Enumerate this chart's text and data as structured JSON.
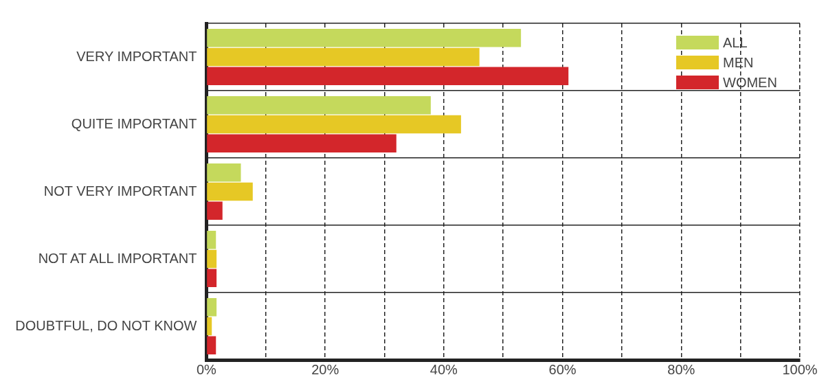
{
  "chart_data": {
    "type": "bar",
    "orientation": "horizontal",
    "categories": [
      "VERY IMPORTANT",
      "QUITE IMPORTANT",
      "NOT VERY IMPORTANT",
      "NOT AT ALL IMPORTANT",
      "DOUBTFUL, DO NOT KNOW"
    ],
    "series": [
      {
        "name": "ALL",
        "color": "#c5d95c",
        "values": [
          53,
          37.8,
          5.8,
          1.6,
          1.7
        ]
      },
      {
        "name": "MEN",
        "color": "#e6c825",
        "values": [
          46,
          42.9,
          7.8,
          1.7,
          0.9
        ]
      },
      {
        "name": "WOMEN",
        "color": "#d3262b",
        "values": [
          61,
          32,
          2.7,
          1.7,
          1.6
        ]
      }
    ],
    "xlim": [
      0,
      100
    ],
    "xticks": [
      {
        "value": 0,
        "label": "0%"
      },
      {
        "value": 10,
        "label": null
      },
      {
        "value": 20,
        "label": "20%"
      },
      {
        "value": 30,
        "label": null
      },
      {
        "value": 40,
        "label": "40%"
      },
      {
        "value": 50,
        "label": null
      },
      {
        "value": 60,
        "label": "60%"
      },
      {
        "value": 70,
        "label": null
      },
      {
        "value": 80,
        "label": "80%"
      },
      {
        "value": 90,
        "label": null
      },
      {
        "value": 100,
        "label": "100%"
      }
    ],
    "grid": true,
    "legend": "top right"
  }
}
